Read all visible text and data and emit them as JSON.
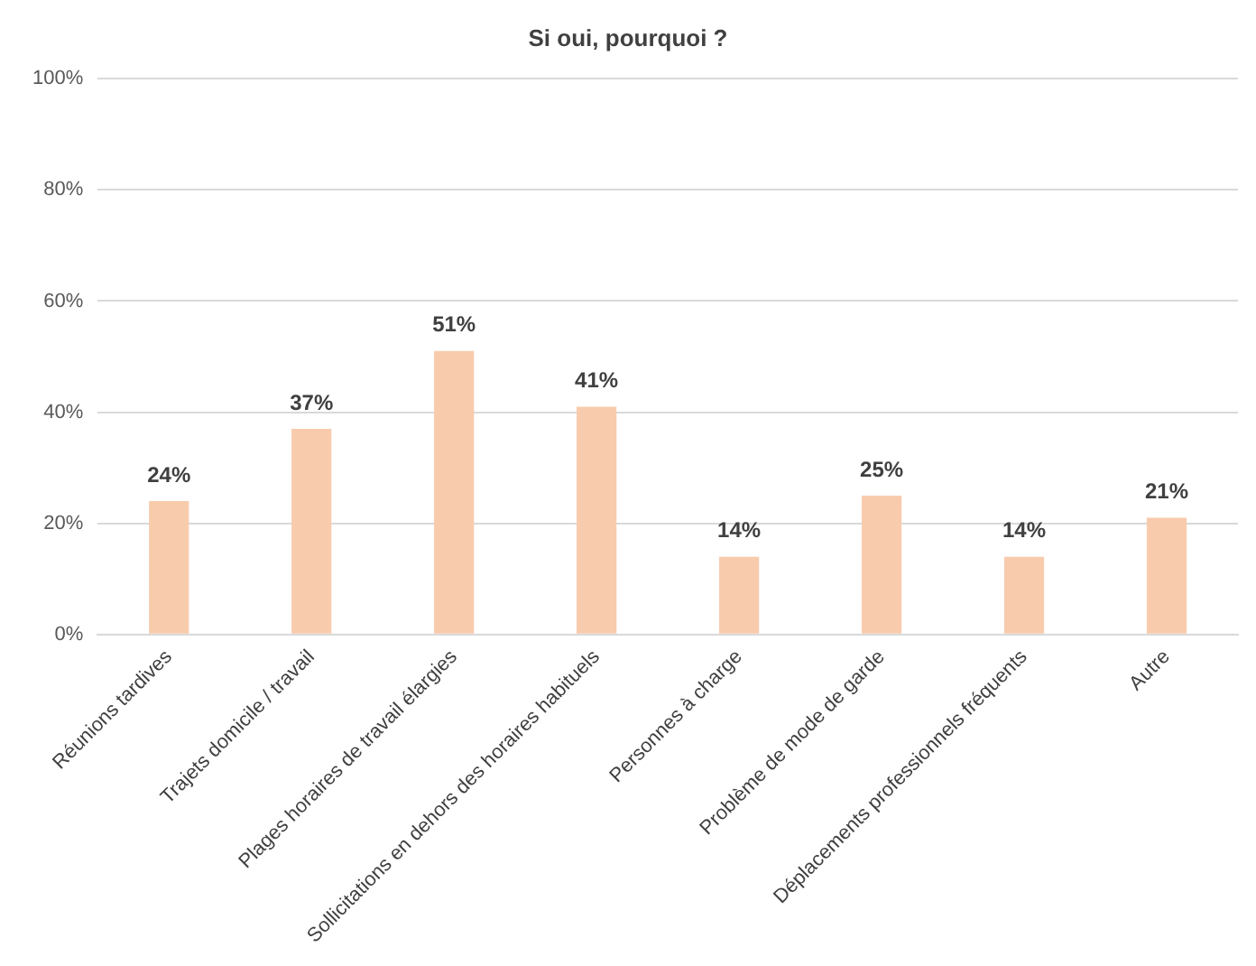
{
  "chart_data": {
    "type": "bar",
    "title": "Si oui, pourquoi ?",
    "categories": [
      "Réunions tardives",
      "Trajets domicile / travail",
      "Plages horaires de travail élargies",
      "Sollicitations en dehors des horaires habituels",
      "Personnes à charge",
      "Problème de mode de garde",
      "Déplacements professionnels fréquents",
      "Autre"
    ],
    "values": [
      24,
      37,
      51,
      41,
      14,
      25,
      14,
      21
    ],
    "value_labels": [
      "24%",
      "37%",
      "51%",
      "41%",
      "14%",
      "25%",
      "14%",
      "21%"
    ],
    "color": "#f8cbad",
    "ylim": [
      0,
      100
    ],
    "yticks": [
      {
        "value": 0,
        "label": "0%"
      },
      {
        "value": 20,
        "label": "20%"
      },
      {
        "value": 40,
        "label": "40%"
      },
      {
        "value": 60,
        "label": "60%"
      },
      {
        "value": 80,
        "label": "80%"
      },
      {
        "value": 100,
        "label": "100%"
      }
    ],
    "grid": "y",
    "legend": false
  }
}
